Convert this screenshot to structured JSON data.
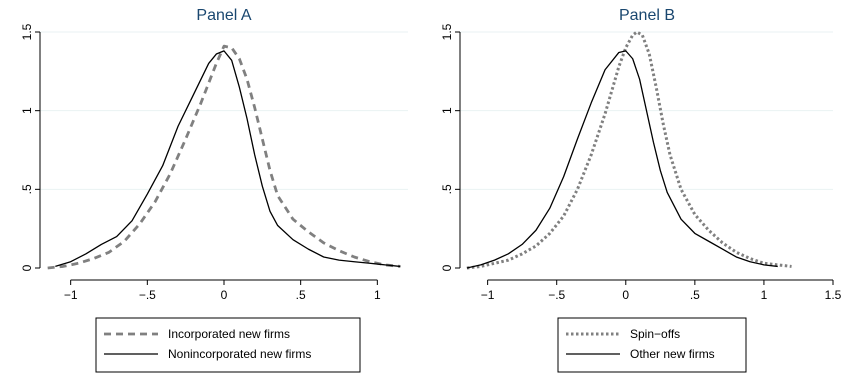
{
  "chart_data": [
    {
      "type": "line",
      "title": "Panel A",
      "xlabel": "",
      "ylabel": "",
      "xlim": [
        -1.2,
        1.2
      ],
      "ylim": [
        0,
        1.5
      ],
      "xticks": [
        -1,
        -0.5,
        0,
        0.5,
        1
      ],
      "xtick_labels": [
        "−1",
        "−.5",
        "0",
        ".5",
        "1"
      ],
      "yticks": [
        0,
        0.5,
        1,
        1.5
      ],
      "ytick_labels": [
        "0",
        ".5",
        "1",
        "1.5"
      ],
      "grid": "horizontal",
      "legend": "bottom",
      "series": [
        {
          "name": "Incorporated new firms",
          "color": "#808080",
          "style": "dashed",
          "x": [
            -1.15,
            -1.05,
            -0.95,
            -0.85,
            -0.75,
            -0.65,
            -0.55,
            -0.45,
            -0.35,
            -0.25,
            -0.15,
            -0.05,
            0.0,
            0.05,
            0.1,
            0.15,
            0.2,
            0.25,
            0.3,
            0.35,
            0.45,
            0.55,
            0.65,
            0.75,
            0.85,
            0.95,
            1.05,
            1.15
          ],
          "y": [
            0.0,
            0.01,
            0.03,
            0.06,
            0.1,
            0.17,
            0.28,
            0.42,
            0.6,
            0.82,
            1.05,
            1.3,
            1.41,
            1.4,
            1.33,
            1.2,
            1.02,
            0.82,
            0.62,
            0.46,
            0.31,
            0.23,
            0.16,
            0.11,
            0.07,
            0.04,
            0.02,
            0.01
          ]
        },
        {
          "name": "Nonincorporated new firms",
          "color": "#000000",
          "style": "solid",
          "x": [
            -1.1,
            -1.0,
            -0.9,
            -0.8,
            -0.7,
            -0.6,
            -0.5,
            -0.4,
            -0.3,
            -0.2,
            -0.1,
            -0.05,
            0.0,
            0.05,
            0.1,
            0.15,
            0.2,
            0.25,
            0.3,
            0.35,
            0.45,
            0.55,
            0.65,
            0.75,
            0.85,
            0.95,
            1.05,
            1.15
          ],
          "y": [
            0.01,
            0.04,
            0.09,
            0.15,
            0.2,
            0.3,
            0.47,
            0.65,
            0.9,
            1.1,
            1.3,
            1.36,
            1.38,
            1.32,
            1.15,
            0.95,
            0.72,
            0.52,
            0.36,
            0.27,
            0.18,
            0.12,
            0.07,
            0.05,
            0.04,
            0.03,
            0.02,
            0.01
          ]
        }
      ]
    },
    {
      "type": "line",
      "title": "Panel B",
      "xlabel": "",
      "ylabel": "",
      "xlim": [
        -1.2,
        1.5
      ],
      "ylim": [
        0,
        1.5
      ],
      "xticks": [
        -1,
        -0.5,
        0,
        0.5,
        1,
        1.5
      ],
      "xtick_labels": [
        "−1",
        "−.5",
        "0",
        ".5",
        "1",
        "1.5"
      ],
      "yticks": [
        0,
        0.5,
        1,
        1.5
      ],
      "ytick_labels": [
        "0",
        ".5",
        "1",
        "1.5"
      ],
      "grid": "horizontal",
      "legend": "bottom",
      "series": [
        {
          "name": "Spin−offs",
          "color": "#808080",
          "style": "dotted",
          "x": [
            -1.15,
            -1.05,
            -0.95,
            -0.85,
            -0.75,
            -0.65,
            -0.55,
            -0.45,
            -0.35,
            -0.25,
            -0.15,
            -0.05,
            0.0,
            0.05,
            0.08,
            0.12,
            0.17,
            0.22,
            0.27,
            0.32,
            0.4,
            0.5,
            0.6,
            0.7,
            0.8,
            0.9,
            1.0,
            1.1,
            1.2
          ],
          "y": [
            0.0,
            0.01,
            0.03,
            0.05,
            0.09,
            0.14,
            0.22,
            0.33,
            0.5,
            0.72,
            0.98,
            1.28,
            1.4,
            1.48,
            1.5,
            1.48,
            1.36,
            1.15,
            0.92,
            0.72,
            0.5,
            0.34,
            0.24,
            0.16,
            0.1,
            0.06,
            0.03,
            0.02,
            0.01
          ]
        },
        {
          "name": "Other new firms",
          "color": "#000000",
          "style": "solid",
          "x": [
            -1.15,
            -1.05,
            -0.95,
            -0.85,
            -0.75,
            -0.65,
            -0.55,
            -0.45,
            -0.35,
            -0.25,
            -0.15,
            -0.05,
            0.0,
            0.05,
            0.1,
            0.15,
            0.2,
            0.25,
            0.3,
            0.4,
            0.5,
            0.6,
            0.7,
            0.8,
            0.9,
            1.0,
            1.1
          ],
          "y": [
            0.0,
            0.02,
            0.05,
            0.09,
            0.15,
            0.24,
            0.38,
            0.58,
            0.82,
            1.05,
            1.26,
            1.37,
            1.38,
            1.33,
            1.2,
            1.0,
            0.8,
            0.62,
            0.48,
            0.31,
            0.22,
            0.17,
            0.12,
            0.07,
            0.04,
            0.02,
            0.01
          ]
        }
      ]
    }
  ]
}
